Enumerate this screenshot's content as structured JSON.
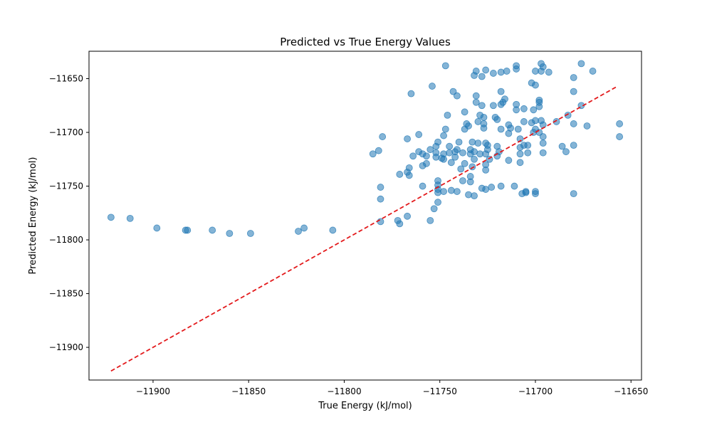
{
  "chart_data": {
    "type": "scatter",
    "title": "Predicted vs True Energy Values",
    "xlabel": "True Energy (kJ/mol)",
    "ylabel": "Predicted Energy (kJ/mol)",
    "xlim": [
      -11933.5,
      -11644.5
    ],
    "ylim": [
      -11930.4,
      -11624.5
    ],
    "xticks": [
      -11900,
      -11850,
      -11800,
      -11750,
      -11700,
      -11650
    ],
    "xtick_labels": [
      "−11900",
      "−11850",
      "−11800",
      "−11750",
      "−11700",
      "−11650"
    ],
    "yticks": [
      -11900,
      -11850,
      -11800,
      -11750,
      -11700,
      -11650
    ],
    "ytick_labels": [
      "−11900",
      "−11850",
      "−11800",
      "−11750",
      "−11700",
      "−11650"
    ],
    "grid": false,
    "point_color": "#1f77b4",
    "point_alpha": 0.55,
    "reference_line": {
      "x": [
        -11922,
        -11657
      ],
      "y": [
        -11922,
        -11657
      ],
      "color": "#e31a1c",
      "style": "dashed"
    },
    "points": [
      [
        -11922,
        -11779
      ],
      [
        -11912,
        -11780
      ],
      [
        -11898,
        -11789
      ],
      [
        -11883,
        -11791
      ],
      [
        -11882,
        -11791
      ],
      [
        -11869,
        -11791
      ],
      [
        -11860,
        -11794
      ],
      [
        -11849,
        -11794
      ],
      [
        -11824,
        -11792
      ],
      [
        -11821,
        -11789
      ],
      [
        -11806,
        -11791
      ],
      [
        -11785,
        -11720
      ],
      [
        -11782,
        -11717
      ],
      [
        -11780,
        -11704
      ],
      [
        -11781,
        -11751
      ],
      [
        -11781,
        -11762
      ],
      [
        -11781,
        -11783
      ],
      [
        -11772,
        -11782
      ],
      [
        -11771,
        -11785
      ],
      [
        -11771,
        -11739
      ],
      [
        -11767,
        -11706
      ],
      [
        -11767,
        -11737
      ],
      [
        -11766,
        -11733
      ],
      [
        -11766,
        -11740
      ],
      [
        -11767,
        -11778
      ],
      [
        -11765,
        -11664
      ],
      [
        -11764,
        -11722
      ],
      [
        -11761,
        -11702
      ],
      [
        -11761,
        -11718
      ],
      [
        -11759,
        -11720
      ],
      [
        -11759,
        -11731
      ],
      [
        -11759,
        -11750
      ],
      [
        -11757,
        -11722
      ],
      [
        -11757,
        -11729
      ],
      [
        -11755,
        -11716
      ],
      [
        -11755,
        -11782
      ],
      [
        -11754,
        -11657
      ],
      [
        -11753,
        -11771
      ],
      [
        -11752,
        -11719
      ],
      [
        -11752,
        -11723
      ],
      [
        -11752,
        -11713
      ],
      [
        -11751,
        -11709
      ],
      [
        -11751,
        -11745
      ],
      [
        -11751,
        -11749
      ],
      [
        -11751,
        -11753
      ],
      [
        -11751,
        -11756
      ],
      [
        -11751,
        -11765
      ],
      [
        -11749,
        -11724
      ],
      [
        -11748,
        -11703
      ],
      [
        -11748,
        -11720
      ],
      [
        -11748,
        -11725
      ],
      [
        -11748,
        -11755
      ],
      [
        -11747,
        -11638
      ],
      [
        -11747,
        -11697
      ],
      [
        -11746,
        -11684
      ],
      [
        -11745,
        -11713
      ],
      [
        -11745,
        -11719
      ],
      [
        -11744,
        -11728
      ],
      [
        -11744,
        -11754
      ],
      [
        -11743,
        -11662
      ],
      [
        -11742,
        -11723
      ],
      [
        -11742,
        -11718
      ],
      [
        -11741,
        -11716
      ],
      [
        -11741,
        -11755
      ],
      [
        -11741,
        -11666
      ],
      [
        -11740,
        -11709
      ],
      [
        -11739,
        -11734
      ],
      [
        -11738,
        -11719
      ],
      [
        -11738,
        -11745
      ],
      [
        -11737,
        -11681
      ],
      [
        -11737,
        -11697
      ],
      [
        -11737,
        -11729
      ],
      [
        -11736,
        -11692
      ],
      [
        -11735,
        -11758
      ],
      [
        -11735,
        -11694
      ],
      [
        -11734,
        -11716
      ],
      [
        -11734,
        -11720
      ],
      [
        -11734,
        -11741
      ],
      [
        -11734,
        -11746
      ],
      [
        -11733,
        -11732
      ],
      [
        -11733,
        -11709
      ],
      [
        -11732,
        -11718
      ],
      [
        -11732,
        -11725
      ],
      [
        -11732,
        -11759
      ],
      [
        -11732,
        -11647
      ],
      [
        -11731,
        -11666
      ],
      [
        -11731,
        -11672
      ],
      [
        -11731,
        -11643
      ],
      [
        -11730,
        -11690
      ],
      [
        -11730,
        -11710
      ],
      [
        -11729,
        -11720
      ],
      [
        -11729,
        -11684
      ],
      [
        -11728,
        -11752
      ],
      [
        -11728,
        -11675
      ],
      [
        -11728,
        -11648
      ],
      [
        -11727,
        -11686
      ],
      [
        -11727,
        -11692
      ],
      [
        -11727,
        -11696
      ],
      [
        -11726,
        -11710
      ],
      [
        -11726,
        -11720
      ],
      [
        -11726,
        -11730
      ],
      [
        -11726,
        -11735
      ],
      [
        -11726,
        -11753
      ],
      [
        -11726,
        -11642
      ],
      [
        -11725,
        -11712
      ],
      [
        -11725,
        -11716
      ],
      [
        -11724,
        -11725
      ],
      [
        -11723,
        -11751
      ],
      [
        -11722,
        -11675
      ],
      [
        -11722,
        -11645
      ],
      [
        -11721,
        -11686
      ],
      [
        -11720,
        -11688
      ],
      [
        -11720,
        -11713
      ],
      [
        -11720,
        -11722
      ],
      [
        -11719,
        -11718
      ],
      [
        -11718,
        -11644
      ],
      [
        -11718,
        -11662
      ],
      [
        -11718,
        -11674
      ],
      [
        -11718,
        -11697
      ],
      [
        -11718,
        -11750
      ],
      [
        -11717,
        -11672
      ],
      [
        -11716,
        -11669
      ],
      [
        -11715,
        -11643
      ],
      [
        -11714,
        -11693
      ],
      [
        -11714,
        -11701
      ],
      [
        -11714,
        -11726
      ],
      [
        -11713,
        -11696
      ],
      [
        -11711,
        -11750
      ],
      [
        -11710,
        -11638
      ],
      [
        -11710,
        -11641
      ],
      [
        -11710,
        -11674
      ],
      [
        -11710,
        -11679
      ],
      [
        -11709,
        -11697
      ],
      [
        -11708,
        -11706
      ],
      [
        -11708,
        -11720
      ],
      [
        -11708,
        -11714
      ],
      [
        -11708,
        -11728
      ],
      [
        -11707,
        -11757
      ],
      [
        -11706,
        -11690
      ],
      [
        -11706,
        -11678
      ],
      [
        -11706,
        -11712
      ],
      [
        -11705,
        -11756
      ],
      [
        -11705,
        -11755
      ],
      [
        -11704,
        -11719
      ],
      [
        -11704,
        -11712
      ],
      [
        -11702,
        -11654
      ],
      [
        -11702,
        -11691
      ],
      [
        -11701,
        -11679
      ],
      [
        -11701,
        -11700
      ],
      [
        -11700,
        -11656
      ],
      [
        -11700,
        -11643
      ],
      [
        -11700,
        -11689
      ],
      [
        -11700,
        -11697
      ],
      [
        -11700,
        -11755
      ],
      [
        -11700,
        -11757
      ],
      [
        -11698,
        -11700
      ],
      [
        -11698,
        -11670
      ],
      [
        -11698,
        -11676
      ],
      [
        -11698,
        -11672
      ],
      [
        -11697,
        -11689
      ],
      [
        -11697,
        -11643
      ],
      [
        -11697,
        -11636
      ],
      [
        -11696,
        -11639
      ],
      [
        -11696,
        -11693
      ],
      [
        -11696,
        -11710
      ],
      [
        -11696,
        -11719
      ],
      [
        -11696,
        -11704
      ],
      [
        -11693,
        -11644
      ],
      [
        -11689,
        -11690
      ],
      [
        -11686,
        -11713
      ],
      [
        -11684,
        -11718
      ],
      [
        -11683,
        -11684
      ],
      [
        -11680,
        -11649
      ],
      [
        -11680,
        -11662
      ],
      [
        -11680,
        -11692
      ],
      [
        -11680,
        -11712
      ],
      [
        -11680,
        -11757
      ],
      [
        -11676,
        -11636
      ],
      [
        -11676,
        -11675
      ],
      [
        -11673,
        -11694
      ],
      [
        -11670,
        -11643
      ],
      [
        -11656,
        -11692
      ],
      [
        -11656,
        -11704
      ]
    ]
  }
}
